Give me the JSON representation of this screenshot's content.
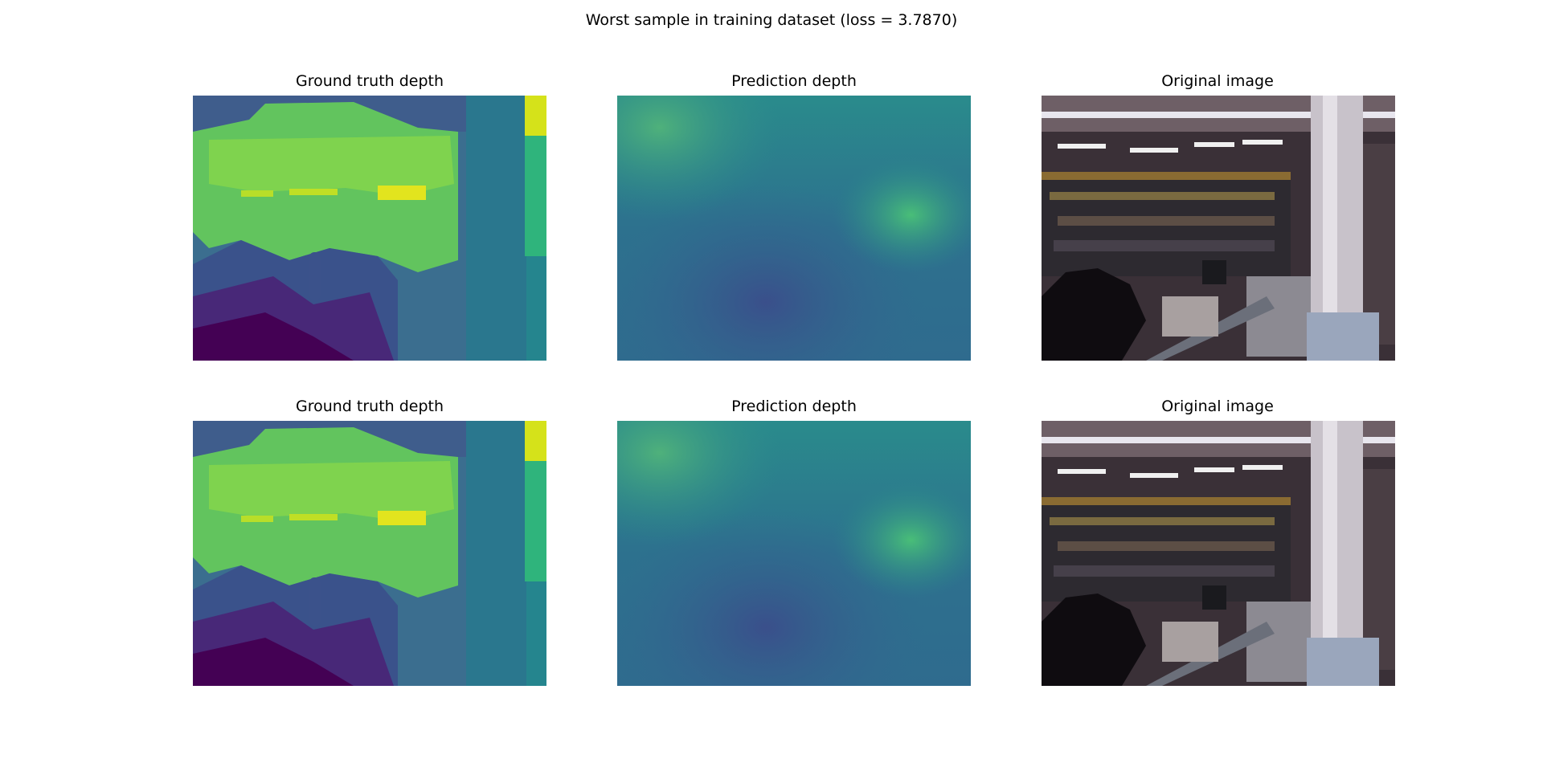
{
  "figure": {
    "title": "Worst sample in training dataset (loss = 3.7870)"
  },
  "rows": [
    {
      "panels": [
        {
          "title": "Ground truth depth",
          "kind": "depth-ground-truth",
          "colormap": "viridis"
        },
        {
          "title": "Prediction depth",
          "kind": "depth-prediction",
          "colormap": "viridis"
        },
        {
          "title": "Original image",
          "kind": "rgb-photo"
        }
      ]
    },
    {
      "panels": [
        {
          "title": "Ground truth depth",
          "kind": "depth-ground-truth",
          "colormap": "viridis"
        },
        {
          "title": "Prediction depth",
          "kind": "depth-prediction",
          "colormap": "viridis"
        },
        {
          "title": "Original image",
          "kind": "rgb-photo"
        }
      ]
    }
  ],
  "colors": {
    "viridis_dark": "#440154",
    "viridis_blue": "#3b528b",
    "viridis_teal": "#21918c",
    "viridis_green": "#5ec962",
    "viridis_yellow": "#fde725"
  }
}
